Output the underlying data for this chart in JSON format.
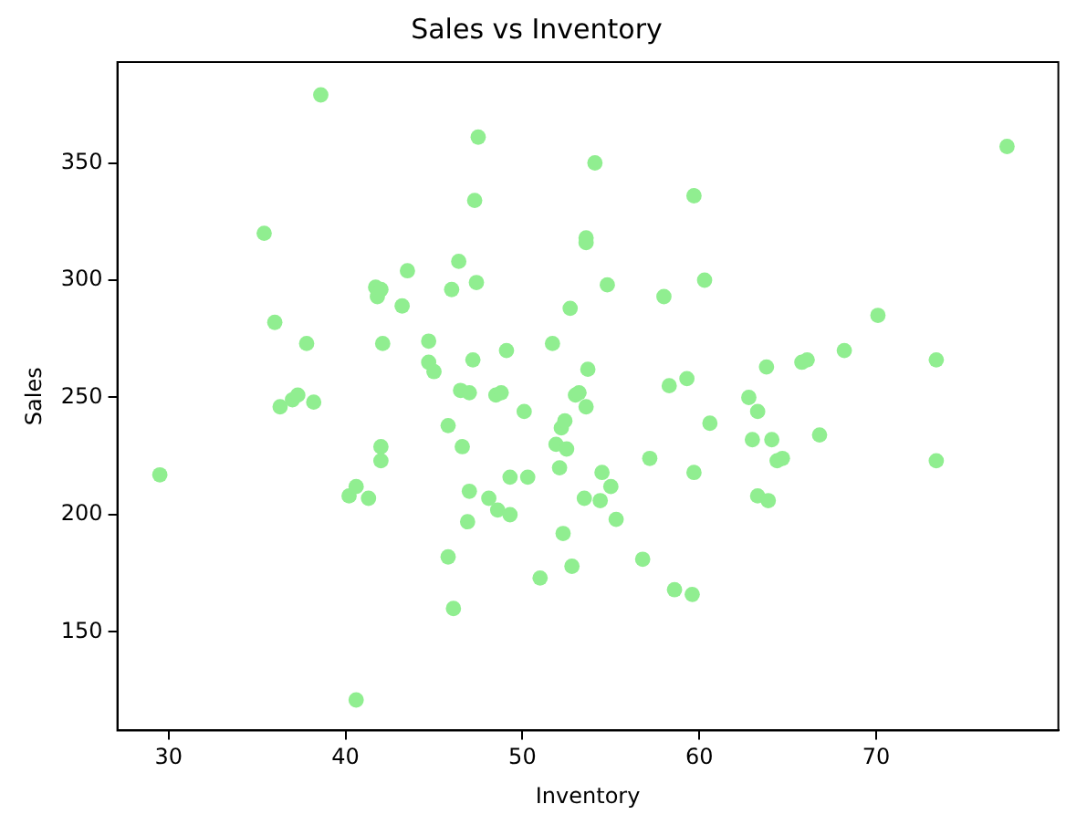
{
  "chart_data": {
    "type": "scatter",
    "title": "Sales vs Inventory",
    "xlabel": "Inventory",
    "ylabel": "Sales",
    "grid": false,
    "legend": false,
    "marker": "circle",
    "xlim": [
      27.1,
      80.3
    ],
    "ylim": [
      108,
      393
    ],
    "xticks": [
      30,
      40,
      50,
      60,
      70
    ],
    "yticks": [
      150,
      200,
      250,
      300,
      350
    ],
    "series": [
      {
        "color": "#90ee90",
        "x": [
          29.5,
          35.4,
          36,
          36.3,
          37,
          37.3,
          37.8,
          38.2,
          38.6,
          40.2,
          40.6,
          40.6,
          41.3,
          41.7,
          41.8,
          42,
          42,
          42,
          42.1,
          43.2,
          43.5,
          44.7,
          44.7,
          45,
          45.8,
          45.8,
          46,
          46.1,
          46.4,
          46.5,
          46.6,
          46.9,
          47,
          47,
          47.2,
          47.3,
          47.4,
          47.5,
          48.1,
          48.5,
          48.6,
          48.8,
          49.1,
          49.3,
          49.3,
          50.1,
          50.3,
          51,
          51.7,
          51.9,
          52.1,
          52.2,
          52.3,
          52.5,
          52.4,
          52.7,
          52.8,
          53,
          53.2,
          53.5,
          53.6,
          53.6,
          53.6,
          53.7,
          54.1,
          54.4,
          54.5,
          54.8,
          55,
          55.3,
          56.8,
          57.2,
          58,
          58.3,
          58.6,
          59.3,
          59.7,
          59.6,
          59.7,
          60.3,
          60.6,
          62.8,
          63,
          63.3,
          63.3,
          63.8,
          63.9,
          64.1,
          64.4,
          64.7,
          65.8,
          66.1,
          66.8,
          68.2,
          70.1,
          73.4,
          73.4,
          77.4
        ],
        "values": [
          217,
          320,
          282,
          246,
          249,
          251,
          273,
          248,
          379,
          208,
          212,
          121,
          207,
          297,
          293,
          296,
          229,
          223,
          273,
          289,
          304,
          274,
          265,
          261,
          182,
          238,
          296,
          160,
          308,
          253,
          229,
          197,
          252,
          210,
          266,
          334,
          299,
          361,
          207,
          251,
          202,
          252,
          270,
          200,
          216,
          244,
          216,
          173,
          273,
          230,
          220,
          237,
          192,
          228,
          240,
          288,
          178,
          251,
          252,
          207,
          246,
          318,
          316,
          262,
          350,
          206,
          218,
          298,
          212,
          198,
          181,
          224,
          293,
          255,
          168,
          258,
          336,
          166,
          218,
          300,
          239,
          250,
          232,
          244,
          208,
          263,
          206,
          232,
          223,
          224,
          265,
          266,
          234,
          270,
          285,
          266,
          223,
          357
        ]
      }
    ]
  }
}
